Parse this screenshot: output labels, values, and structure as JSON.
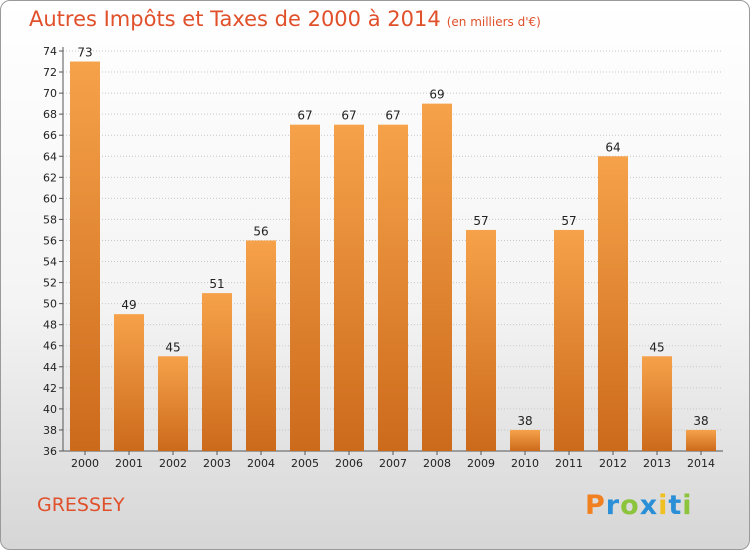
{
  "header": {
    "title": "Autres Impôts et Taxes de 2000 à 2014",
    "unit": "(en milliers d'€)"
  },
  "footer": {
    "place": "GRESSEY",
    "brand": "Proxiti"
  },
  "colors": {
    "title": "#e0502a",
    "bar_light": "#f6a24a",
    "bar_dark": "#cc6a1b",
    "grid": "#c8c8c8",
    "brand_letters": [
      "#f08020",
      "#2a8fd6",
      "#8cc43c",
      "#2a8fd6",
      "#f0c020",
      "#2a8fd6",
      "#8cc43c"
    ]
  },
  "chart_data": {
    "type": "bar",
    "categories": [
      "2000",
      "2001",
      "2002",
      "2003",
      "2004",
      "2005",
      "2006",
      "2007",
      "2008",
      "2009",
      "2010",
      "2011",
      "2012",
      "2013",
      "2014"
    ],
    "values": [
      73,
      49,
      45,
      51,
      56,
      67,
      67,
      67,
      69,
      57,
      38,
      57,
      64,
      45,
      38
    ],
    "title": "Autres Impôts et Taxes de 2000 à 2014",
    "ylim": [
      36,
      74
    ],
    "yticks": [
      36,
      38,
      40,
      42,
      44,
      46,
      48,
      50,
      52,
      54,
      56,
      58,
      60,
      62,
      64,
      66,
      68,
      70,
      72,
      74
    ],
    "grid": true,
    "data_labels": true
  }
}
